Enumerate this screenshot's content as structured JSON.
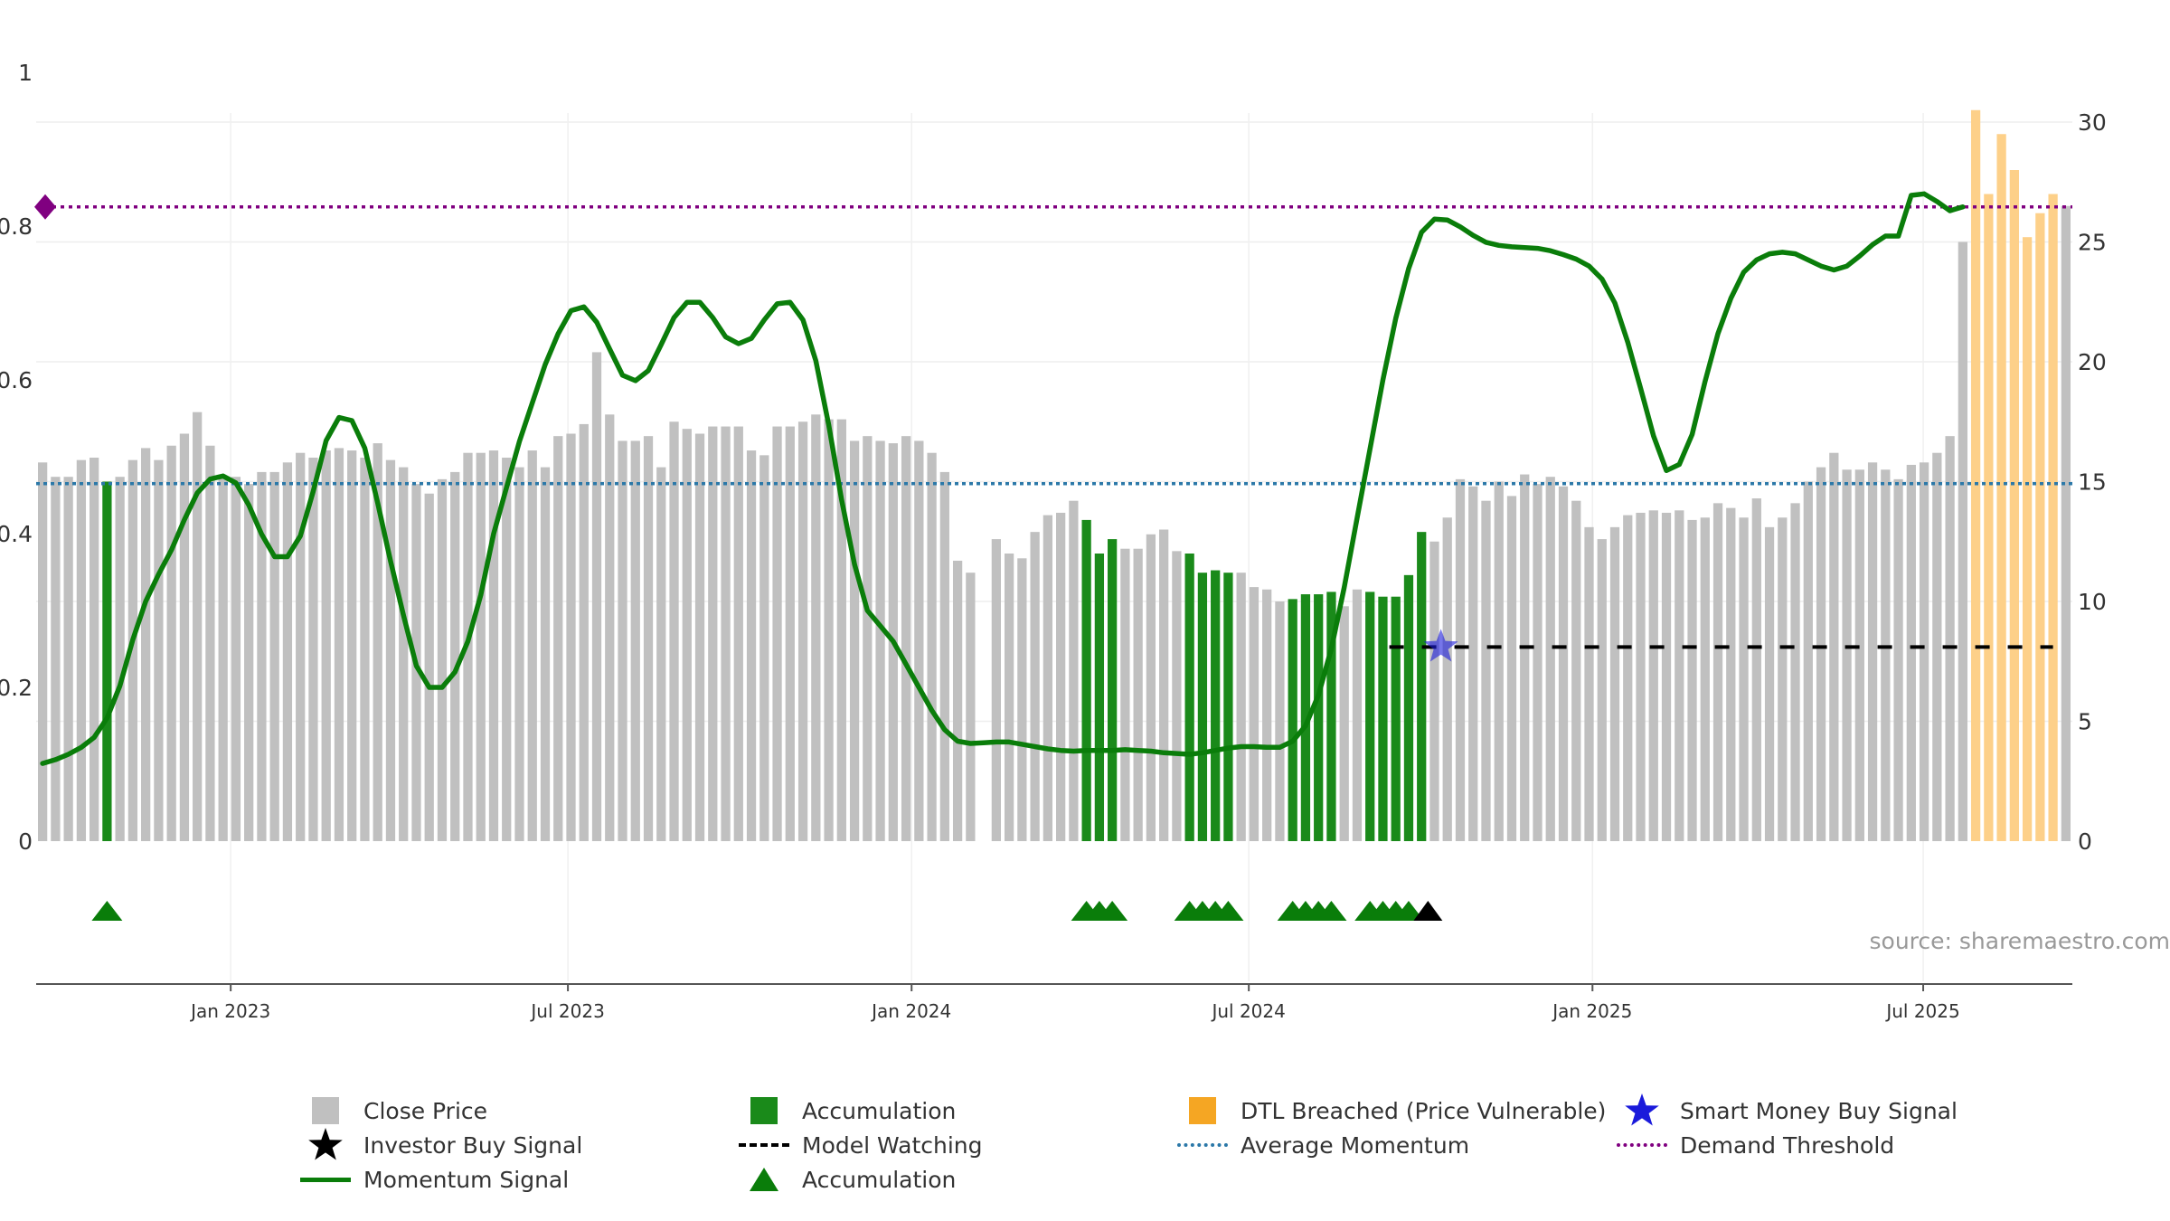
{
  "chart_data": {
    "type": "bar",
    "source_text": "source: sharemaestro.com",
    "left_axis": {
      "ticks": [
        0,
        0.2,
        0.4,
        0.6,
        0.8,
        1
      ],
      "labels": [
        "0",
        "0.2",
        "0.4",
        "0.6",
        "0.8",
        "1"
      ],
      "ylim": [
        0,
        1
      ]
    },
    "right_axis": {
      "ticks": [
        0,
        5,
        10,
        15,
        20,
        25,
        30
      ],
      "labels": [
        "0",
        "5",
        "10",
        "15",
        "20",
        "25",
        "30"
      ],
      "ylim": [
        0,
        30
      ]
    },
    "x_axis": {
      "range": [
        0,
        157
      ],
      "ticks": [
        15,
        41,
        67.5,
        93.5,
        120,
        145.5
      ],
      "labels": [
        "Jan 2023",
        "Jul 2023",
        "Jan 2024",
        "Jul 2024",
        "Jan 2025",
        "Jul 2025"
      ]
    },
    "close_prices": [
      15.8,
      15.2,
      15.2,
      15.9,
      16.0,
      15.0,
      15.2,
      15.9,
      16.4,
      15.9,
      16.5,
      17.0,
      17.9,
      16.5,
      15.2,
      15.2,
      14.9,
      15.4,
      15.4,
      15.8,
      16.2,
      16.0,
      16.3,
      16.4,
      16.3,
      16.0,
      16.6,
      15.9,
      15.6,
      14.9,
      14.5,
      15.1,
      15.4,
      16.2,
      16.2,
      16.3,
      16.0,
      15.6,
      16.3,
      15.6,
      16.9,
      17.0,
      17.4,
      20.4,
      17.8,
      16.7,
      16.7,
      16.9,
      15.6,
      17.5,
      17.2,
      17.0,
      17.3,
      17.3,
      17.3,
      16.3,
      16.1,
      17.3,
      17.3,
      17.5,
      17.8,
      17.6,
      17.6,
      16.7,
      16.9,
      16.7,
      16.6,
      16.9,
      16.7,
      16.2,
      15.4,
      11.7,
      11.2,
      null,
      12.6,
      12.0,
      11.8,
      12.9,
      13.6,
      13.7,
      14.2,
      13.4,
      12.0,
      12.6,
      12.2,
      12.2,
      12.8,
      13.0,
      12.1,
      12.0,
      11.2,
      11.3,
      11.2,
      11.2,
      10.6,
      10.5,
      10.0,
      10.1,
      10.3,
      10.3,
      10.4,
      9.8,
      10.5,
      10.4,
      10.2,
      10.2,
      11.1,
      12.9,
      12.5,
      13.5,
      15.1,
      14.8,
      14.2,
      15.0,
      14.4,
      15.3,
      14.9,
      15.2,
      14.8,
      14.2,
      13.1,
      12.6,
      13.1,
      13.6,
      13.7,
      13.8,
      13.7,
      13.8,
      13.4,
      13.5,
      14.1,
      13.9,
      13.5,
      14.3,
      13.1,
      13.5,
      14.1,
      15.0,
      15.6,
      16.2,
      15.5,
      15.5,
      15.8,
      15.5,
      15.1,
      15.7,
      15.8,
      16.2,
      16.9,
      25.0,
      30.5,
      27.0,
      29.5,
      28.0,
      25.2,
      26.2,
      27.0,
      26.5
    ],
    "accumulation_indices": [
      5,
      81,
      82,
      83,
      89,
      90,
      91,
      92,
      97,
      98,
      99,
      100,
      103,
      104,
      105,
      106,
      107
    ],
    "dtl_breached_indices": [
      150,
      151,
      152,
      153,
      154,
      155,
      156
    ],
    "momentum": [
      0.101,
      0.106,
      0.113,
      0.122,
      0.135,
      0.16,
      0.202,
      0.262,
      0.312,
      0.347,
      0.379,
      0.418,
      0.453,
      0.471,
      0.475,
      0.466,
      0.437,
      0.399,
      0.37,
      0.37,
      0.397,
      0.455,
      0.521,
      0.551,
      0.547,
      0.511,
      0.44,
      0.364,
      0.294,
      0.228,
      0.2,
      0.2,
      0.22,
      0.26,
      0.32,
      0.4,
      0.46,
      0.52,
      0.57,
      0.62,
      0.66,
      0.69,
      0.695,
      0.675,
      0.64,
      0.606,
      0.599,
      0.612,
      0.646,
      0.681,
      0.701,
      0.701,
      0.681,
      0.656,
      0.647,
      0.654,
      0.678,
      0.699,
      0.701,
      0.678,
      0.625,
      0.541,
      0.444,
      0.36,
      0.3,
      0.28,
      0.26,
      0.23,
      0.2,
      0.17,
      0.145,
      0.13,
      0.127,
      0.128,
      0.129,
      0.129,
      0.126,
      0.123,
      0.12,
      0.118,
      0.117,
      0.118,
      0.118,
      0.118,
      0.119,
      0.118,
      0.117,
      0.115,
      0.114,
      0.113,
      0.115,
      0.118,
      0.121,
      0.123,
      0.123,
      0.122,
      0.122,
      0.13,
      0.15,
      0.19,
      0.25,
      0.33,
      0.42,
      0.51,
      0.6,
      0.68,
      0.745,
      0.792,
      0.809,
      0.808,
      0.799,
      0.788,
      0.779,
      0.775,
      0.773,
      0.772,
      0.771,
      0.768,
      0.763,
      0.757,
      0.748,
      0.731,
      0.7,
      0.649,
      0.589,
      0.527,
      0.482,
      0.49,
      0.529,
      0.598,
      0.66,
      0.706,
      0.74,
      0.756,
      0.764,
      0.766,
      0.764,
      0.756,
      0.748,
      0.743,
      0.748,
      0.761,
      0.776,
      0.787,
      0.787,
      0.84,
      0.842,
      0.832,
      0.82,
      0.825
    ],
    "average_momentum": 0.465,
    "demand_threshold": 0.825,
    "model_watching": {
      "price": 8.1,
      "start_index": 105,
      "end_index": 156
    },
    "smart_money_buy_signal": {
      "index": 108.5,
      "price": 8.1
    },
    "accumulation_markers": [
      5,
      81,
      82,
      83,
      89,
      90,
      91,
      92,
      97,
      98,
      99,
      100,
      103,
      104,
      105,
      106
    ],
    "investor_buy_marker": 107.5,
    "colors": {
      "close_price": "#c0c0c0",
      "accumulation": "#1a8a1a",
      "dtl": "#fdd089",
      "momentum": "#0a7d0a",
      "average_momentum": "#2b78a8",
      "demand_threshold": "#800080",
      "smart_money": "#1a1adb",
      "investor": "#000000"
    }
  },
  "legend": [
    {
      "label": "Close Price",
      "symbol": "box-gray"
    },
    {
      "label": "Accumulation",
      "symbol": "box-green"
    },
    {
      "label": "DTL Breached (Price Vulnerable)",
      "symbol": "box-orange"
    },
    {
      "label": "Smart Money Buy Signal",
      "symbol": "star-blue"
    },
    {
      "label": "Investor Buy Signal",
      "symbol": "star-black"
    },
    {
      "label": "Model Watching",
      "symbol": "dash-black"
    },
    {
      "label": "Average Momentum",
      "symbol": "dot-blue"
    },
    {
      "label": "Demand Threshold",
      "symbol": "dot-purple"
    },
    {
      "label": "Momentum Signal",
      "symbol": "line-green"
    },
    {
      "label": "Accumulation",
      "symbol": "triangle-green"
    }
  ]
}
